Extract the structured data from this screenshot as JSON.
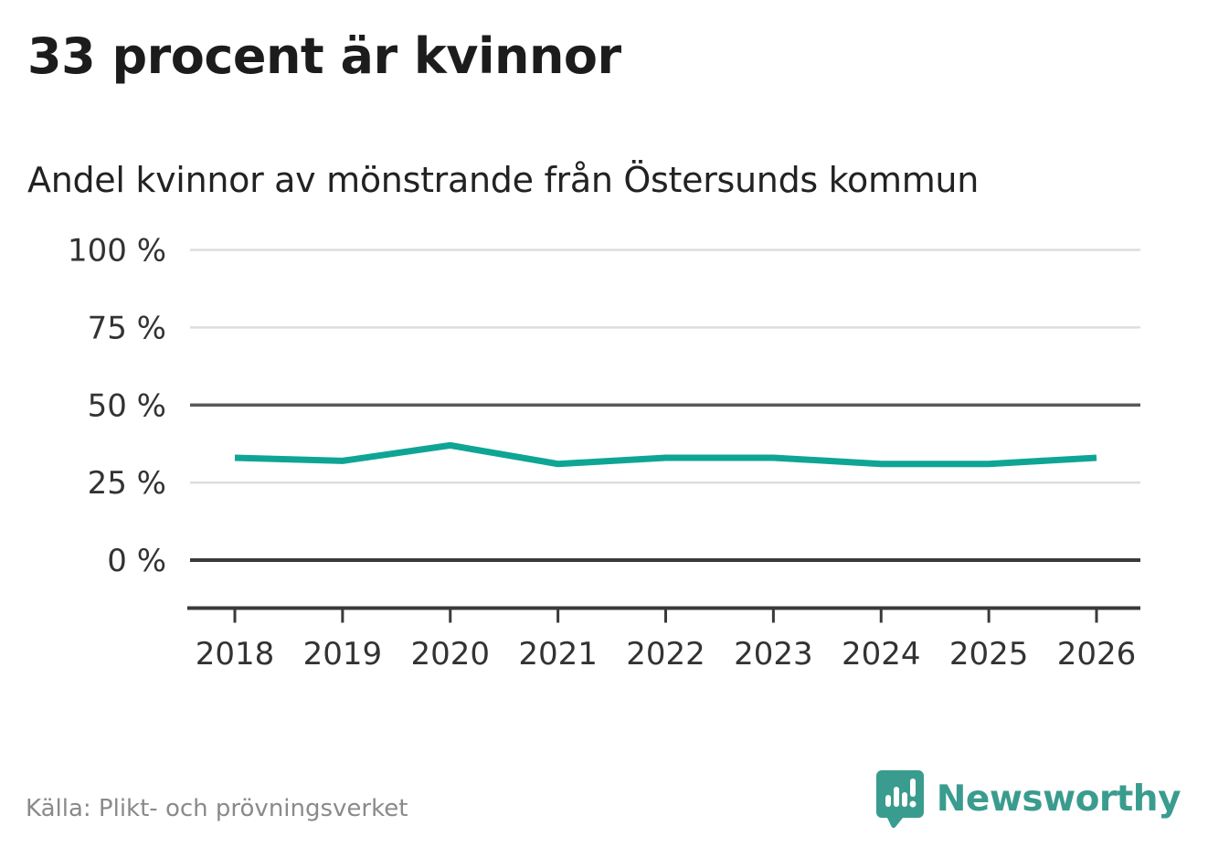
{
  "header": {
    "title": "33 procent är kvinnor",
    "subtitle": "Andel kvinnor av mönstrande från Östersunds kommun"
  },
  "footer": {
    "source": "Källa: Plikt- och prövningsverket",
    "brand_name": "Newsworthy"
  },
  "colors": {
    "line": "#0ea595",
    "grid_light": "#dddddd",
    "grid_mid": "#595959",
    "axis_dark": "#3a3a3a",
    "tick_label": "#333333",
    "title_text": "#1c1c1c",
    "source_text": "#8a8a8a",
    "brand_teal": "#3a9c8e"
  },
  "chart_data": {
    "type": "line",
    "title": "33 procent är kvinnor",
    "subtitle": "Andel kvinnor av mönstrande från Östersunds kommun",
    "x": [
      2018,
      2019,
      2020,
      2021,
      2022,
      2023,
      2024,
      2025,
      2026
    ],
    "x_tick_labels": [
      "2018",
      "2019",
      "2020",
      "2021",
      "2022",
      "2023",
      "2024",
      "2025",
      "2026"
    ],
    "series": [
      {
        "name": "Andel kvinnor av mönstrande",
        "values": [
          33,
          32,
          37,
          31,
          33,
          33,
          31,
          31,
          33
        ]
      }
    ],
    "unit": "%",
    "y_ticks": [
      0,
      25,
      50,
      75,
      100
    ],
    "y_tick_labels": [
      "0 %",
      "25 %",
      "50 %",
      "75 %",
      "100 %"
    ],
    "ylim": [
      0,
      100
    ],
    "grid": "horizontal",
    "legend": "none",
    "source": "Källa: Plikt- och prövningsverket"
  }
}
